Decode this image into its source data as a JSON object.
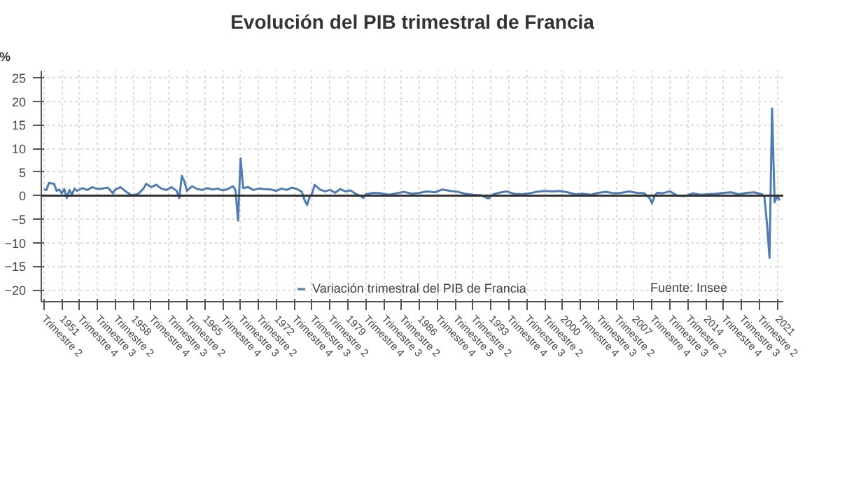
{
  "chart_data": {
    "type": "line",
    "title": "Evolución del PIB trimestral de Francia",
    "ylabel": "%",
    "annotations": [
      "Fuente: Insee"
    ],
    "x": [
      1949.25,
      1949.5,
      1949.75,
      1950,
      1950.25,
      1950.5,
      1950.75,
      1951,
      1951.25,
      1951.5,
      1951.75,
      1952,
      1952.25,
      1952.5,
      1953,
      1953.5,
      1954,
      1954.5,
      1955,
      1955.5,
      1956,
      1956.25,
      1956.75,
      1957.25,
      1957.75,
      1958,
      1958.5,
      1959,
      1959.25,
      1959.75,
      1960.25,
      1960.75,
      1961.25,
      1961.75,
      1962.25,
      1962.5,
      1962.75,
      1963,
      1963.25,
      1963.75,
      1964.25,
      1964.75,
      1965.25,
      1965.75,
      1966.25,
      1966.75,
      1967.25,
      1967.75,
      1968,
      1968.25,
      1968.5,
      1968.75,
      1969.25,
      1969.75,
      1970.25,
      1970.75,
      1971.5,
      1972,
      1972.5,
      1973,
      1973.5,
      1974,
      1974.5,
      1974.75,
      1975,
      1975.25,
      1975.5,
      1975.75,
      1976.25,
      1976.75,
      1977.25,
      1977.75,
      1978.25,
      1978.75,
      1979.25,
      1979.75,
      1980.25,
      1980.5,
      1980.75,
      1981.5,
      1982.25,
      1983,
      1983.75,
      1984.5,
      1985.25,
      1986,
      1986.75,
      1987.5,
      1988.25,
      1989,
      1989.75,
      1990.5,
      1991.25,
      1992,
      1992.75,
      1993.25,
      1993.75,
      1994.5,
      1995.25,
      1996,
      1996.75,
      1997.5,
      1998.25,
      1999,
      1999.75,
      2000.5,
      2001.25,
      2002,
      2002.75,
      2003.5,
      2004.25,
      2005,
      2005.75,
      2006.5,
      2007.25,
      2008,
      2008.5,
      2008.75,
      2009,
      2009.25,
      2009.75,
      2010.5,
      2011.25,
      2012,
      2012.75,
      2013.5,
      2014.25,
      2015,
      2015.75,
      2016.5,
      2017.25,
      2018,
      2018.75,
      2019.5,
      2019.75,
      2020,
      2020.25,
      2020.5,
      2020.75,
      2021,
      2021.25
    ],
    "series": [
      {
        "name": "Variación trimestral del PIB de Francia",
        "color": "#4f7db3",
        "values": [
          1.3,
          1.2,
          2.7,
          2.6,
          2.5,
          1.0,
          1.3,
          0.5,
          1.4,
          -0.5,
          1.2,
          0.2,
          1.5,
          1.0,
          1.6,
          1.2,
          1.8,
          1.4,
          1.5,
          1.7,
          0.5,
          1.3,
          1.8,
          0.9,
          0.2,
          0.1,
          0.4,
          1.5,
          2.5,
          1.8,
          2.3,
          1.5,
          1.2,
          1.8,
          1.0,
          -0.5,
          4.2,
          3.0,
          1.0,
          2.0,
          1.4,
          1.2,
          1.6,
          1.3,
          1.5,
          1.1,
          1.4,
          2.0,
          1.2,
          -5.3,
          7.9,
          1.6,
          1.8,
          1.2,
          1.5,
          1.4,
          1.3,
          1.0,
          1.5,
          1.2,
          1.7,
          1.4,
          0.8,
          -0.9,
          -2.0,
          -0.3,
          0.5,
          2.3,
          1.3,
          0.9,
          1.2,
          0.6,
          1.4,
          0.9,
          1.1,
          0.4,
          -0.1,
          -0.5,
          0.3,
          0.6,
          0.5,
          0.2,
          0.5,
          0.8,
          0.4,
          0.6,
          0.9,
          0.7,
          1.3,
          1.0,
          0.8,
          0.4,
          0.2,
          0.1,
          -0.6,
          0.3,
          0.6,
          0.9,
          0.4,
          0.3,
          0.5,
          0.8,
          1.0,
          0.9,
          1.0,
          0.7,
          0.3,
          0.4,
          0.2,
          0.6,
          0.8,
          0.5,
          0.6,
          0.9,
          0.6,
          0.5,
          -0.5,
          -1.6,
          -0.1,
          0.6,
          0.5,
          0.9,
          0.0,
          -0.1,
          0.5,
          0.2,
          0.3,
          0.4,
          0.6,
          0.7,
          0.3,
          0.6,
          0.7,
          0.3,
          -0.2,
          -5.9,
          -13.2,
          18.5,
          -1.4,
          0.0,
          -1.0
        ]
      }
    ],
    "xlim": [
      1949.0,
      2021.6
    ],
    "ylim": [
      -22.5,
      26.5
    ],
    "yticks": [
      -20,
      -15,
      -10,
      -5,
      0,
      5,
      10,
      15,
      20,
      25
    ],
    "xticks": [
      {
        "value": 1949.25,
        "label": "Trimestre 2"
      },
      {
        "value": 1951,
        "label": "1951"
      },
      {
        "value": 1952.75,
        "label": "Trimestre 4"
      },
      {
        "value": 1954.5,
        "label": "Trimestre 3"
      },
      {
        "value": 1956.25,
        "label": "Trimestre 2"
      },
      {
        "value": 1958,
        "label": "1958"
      },
      {
        "value": 1959.75,
        "label": "Trimestre 4"
      },
      {
        "value": 1961.5,
        "label": "Trimestre 3"
      },
      {
        "value": 1963.25,
        "label": "Trimestre 2"
      },
      {
        "value": 1965,
        "label": "1965"
      },
      {
        "value": 1966.75,
        "label": "Trimestre 4"
      },
      {
        "value": 1968.5,
        "label": "Trimestre 3"
      },
      {
        "value": 1970.25,
        "label": "Trimestre 2"
      },
      {
        "value": 1972,
        "label": "1972"
      },
      {
        "value": 1973.75,
        "label": "Trimestre 4"
      },
      {
        "value": 1975.5,
        "label": "Trimestre 3"
      },
      {
        "value": 1977.25,
        "label": "Trimestre 2"
      },
      {
        "value": 1979,
        "label": "1979"
      },
      {
        "value": 1980.75,
        "label": "Trimestre 4"
      },
      {
        "value": 1982.5,
        "label": "Trimestre 3"
      },
      {
        "value": 1984.25,
        "label": "Trimestre 2"
      },
      {
        "value": 1986,
        "label": "1986"
      },
      {
        "value": 1987.75,
        "label": "Trimestre 4"
      },
      {
        "value": 1989.5,
        "label": "Trimestre 3"
      },
      {
        "value": 1991.25,
        "label": "Trimestre 2"
      },
      {
        "value": 1993,
        "label": "1993"
      },
      {
        "value": 1994.75,
        "label": "Trimestre 4"
      },
      {
        "value": 1996.5,
        "label": "Trimestre 3"
      },
      {
        "value": 1998.25,
        "label": "Trimestre 2"
      },
      {
        "value": 2000,
        "label": "2000"
      },
      {
        "value": 2001.75,
        "label": "Trimestre 4"
      },
      {
        "value": 2003.5,
        "label": "Trimestre 3"
      },
      {
        "value": 2005.25,
        "label": "Trimestre 2"
      },
      {
        "value": 2007,
        "label": "2007"
      },
      {
        "value": 2008.75,
        "label": "Trimestre 4"
      },
      {
        "value": 2010.5,
        "label": "Trimestre 3"
      },
      {
        "value": 2012.25,
        "label": "Trimestre 2"
      },
      {
        "value": 2014,
        "label": "2014"
      },
      {
        "value": 2015.75,
        "label": "Trimestre 4"
      },
      {
        "value": 2017.5,
        "label": "Trimestre 3"
      },
      {
        "value": 2019.25,
        "label": "Trimestre 2"
      },
      {
        "value": 2021,
        "label": "2021"
      }
    ],
    "ref_lines": [
      {
        "axis": "y",
        "value": 0,
        "color": "#333333"
      }
    ],
    "grid": true,
    "legend": "bottom",
    "marker": "none",
    "line_style": "solid"
  }
}
